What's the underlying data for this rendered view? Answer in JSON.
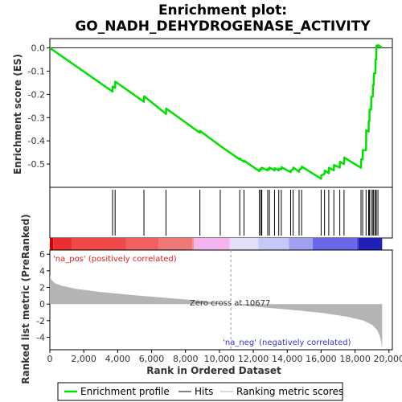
{
  "chart_data": {
    "type": "line",
    "title": "Enrichment plot:",
    "subtitle": "GO_NADH_DEHYDROGENASE_ACTIVITY",
    "xlabel": "Rank in Ordered Dataset",
    "es_panel": {
      "ylabel": "Enrichment score (ES)",
      "ylim": [
        -0.6,
        0.04
      ],
      "yticks": [
        0.0,
        -0.1,
        -0.2,
        -0.3,
        -0.4,
        -0.5
      ],
      "ytick_labels": [
        "0.0",
        "-0.1",
        "-0.2",
        "-0.3",
        "-0.4",
        "-0.5"
      ],
      "series": [
        {
          "name": "Enrichment profile",
          "color": "#00e000",
          "x": [
            0,
            3700,
            3710,
            3850,
            3860,
            5550,
            5560,
            6850,
            6860,
            8850,
            8860,
            10050,
            11200,
            11210,
            11450,
            11460,
            12350,
            12360,
            12450,
            12460,
            12500,
            12510,
            12850,
            12860,
            12950,
            12960,
            13250,
            13260,
            13500,
            13510,
            13650,
            13660,
            14200,
            14210,
            14350,
            14360,
            14700,
            14710,
            14850,
            14860,
            16000,
            16010,
            16200,
            16210,
            16450,
            16460,
            16750,
            16760,
            17100,
            17110,
            17350,
            17360,
            18350,
            18360,
            18450,
            18460,
            18650,
            18660,
            18800,
            18810,
            18850,
            18860,
            18950,
            18960,
            19050,
            19060,
            19100,
            19110,
            19200,
            19210,
            19250,
            19260,
            19350,
            19360,
            19600
          ],
          "values": [
            0.0,
            -0.188,
            -0.166,
            -0.172,
            -0.145,
            -0.232,
            -0.208,
            -0.284,
            -0.261,
            -0.365,
            -0.357,
            -0.422,
            -0.48,
            -0.476,
            -0.49,
            -0.486,
            -0.53,
            -0.523,
            -0.525,
            -0.518,
            -0.52,
            -0.516,
            -0.527,
            -0.52,
            -0.522,
            -0.515,
            -0.527,
            -0.518,
            -0.527,
            -0.52,
            -0.522,
            -0.513,
            -0.535,
            -0.528,
            -0.522,
            -0.515,
            -0.533,
            -0.525,
            -0.518,
            -0.511,
            -0.563,
            -0.548,
            -0.543,
            -0.528,
            -0.539,
            -0.516,
            -0.527,
            -0.504,
            -0.515,
            -0.49,
            -0.5,
            -0.472,
            -0.516,
            -0.48,
            -0.48,
            -0.44,
            -0.44,
            -0.355,
            -0.36,
            -0.315,
            -0.315,
            -0.265,
            -0.265,
            -0.21,
            -0.21,
            -0.16,
            -0.16,
            -0.11,
            -0.11,
            -0.05,
            -0.05,
            0.01,
            0.005,
            0.012,
            0.0
          ]
        }
      ]
    },
    "hits": {
      "name": "Hits",
      "x": [
        3700,
        3850,
        5550,
        6850,
        8850,
        10050,
        11200,
        11450,
        12350,
        12450,
        12500,
        12850,
        12950,
        13250,
        13500,
        13650,
        14200,
        14350,
        14700,
        14850,
        16000,
        16200,
        16450,
        16750,
        17100,
        17350,
        18350,
        18450,
        18650,
        18800,
        18850,
        18950,
        19050,
        19100,
        19200,
        19250,
        19350
      ]
    },
    "colorbar": {
      "colors": [
        "#d40000",
        "#e83030",
        "#f04848",
        "#f06060",
        "#f07878",
        "#f09090",
        "#f4b4f0",
        "#f8d4f8",
        "#e0e0f8",
        "#c8c8f8",
        "#a0a0f0",
        "#6868e8",
        "#4848d8",
        "#2020b8"
      ],
      "boundaries": [
        0,
        200,
        1300,
        4500,
        6400,
        8400,
        8500,
        10600,
        10700,
        12300,
        14100,
        15500,
        18100,
        18200,
        19600
      ]
    },
    "metric_panel": {
      "ylabel": "Ranked list metric (PreRanked)",
      "ylim": [
        -5.5,
        6.5
      ],
      "yticks": [
        6,
        4,
        2,
        0,
        -2,
        -4
      ],
      "ytick_labels": [
        "6",
        "4",
        "2",
        "0",
        "-2",
        "-4"
      ],
      "x": [
        0,
        100,
        300,
        700,
        1500,
        3000,
        5000,
        7000,
        9000,
        10677,
        12000,
        14000,
        16000,
        17500,
        18500,
        19000,
        19300,
        19450,
        19550,
        19600
      ],
      "values": [
        3.4,
        2.9,
        2.5,
        2.2,
        1.85,
        1.45,
        1.05,
        0.72,
        0.38,
        0.0,
        -0.3,
        -0.65,
        -1.05,
        -1.5,
        -2.0,
        -2.5,
        -3.1,
        -3.8,
        -4.6,
        -5.4
      ],
      "fill_color": "#b4b4b4",
      "zero_cross_x": 10677,
      "zero_cross_label": "Zero cross at 10677",
      "pos_label": "'na_pos' (positively correlated)",
      "neg_label": "'na_neg' (negatively correlated)"
    },
    "xaxis": {
      "xlim": [
        0,
        20200
      ],
      "xticks": [
        0,
        2000,
        4000,
        6000,
        8000,
        10000,
        12000,
        14000,
        16000,
        18000,
        20000
      ],
      "xtick_labels": [
        "0",
        "2,000",
        "4,000",
        "6,000",
        "8,000",
        "10,000",
        "12,000",
        "14,000",
        "16,000",
        "18,000",
        "20,000"
      ]
    },
    "legend": {
      "placement": "bottom",
      "entries": [
        {
          "label": "Enrichment profile",
          "color": "#00e000",
          "kind": "line-thick"
        },
        {
          "label": "Hits",
          "color": "#000000",
          "kind": "line-thin"
        },
        {
          "label": "Ranking metric scores",
          "color": "#b4b4b4",
          "kind": "line-thin"
        }
      ]
    },
    "grid": false
  }
}
